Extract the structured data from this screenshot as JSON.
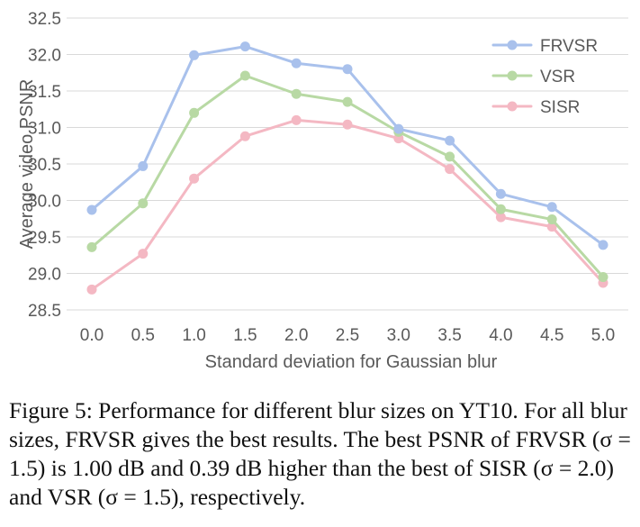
{
  "chart_data": {
    "type": "line",
    "x": [
      0.0,
      0.5,
      1.0,
      1.5,
      2.0,
      2.5,
      3.0,
      3.5,
      4.0,
      4.5,
      5.0
    ],
    "x_tick_labels": [
      "0.0",
      "0.5",
      "1.0",
      "1.5",
      "2.0",
      "2.5",
      "3.0",
      "3.5",
      "4.0",
      "4.5",
      "5.0"
    ],
    "y_tick_labels": [
      "28.5",
      "29.0",
      "29.5",
      "30.0",
      "30.5",
      "31.0",
      "31.5",
      "32.0",
      "32.5"
    ],
    "ylim": [
      28.5,
      32.5
    ],
    "xlabel": "Standard deviation for Gaussian blur",
    "ylabel": "Average video PSNR",
    "grid": "horizontal",
    "legend_position": "top-right",
    "series": [
      {
        "name": "FRVSR",
        "color": "#a9c1ec",
        "values": [
          29.87,
          30.47,
          31.99,
          32.11,
          31.88,
          31.8,
          30.98,
          30.82,
          30.09,
          29.91,
          29.39
        ]
      },
      {
        "name": "VSR",
        "color": "#b8d9a4",
        "values": [
          29.36,
          29.96,
          31.2,
          31.71,
          31.46,
          31.35,
          30.94,
          30.6,
          29.88,
          29.74,
          28.95
        ]
      },
      {
        "name": "SISR",
        "color": "#f4b8c3",
        "values": [
          28.78,
          29.27,
          30.3,
          30.88,
          31.1,
          31.04,
          30.85,
          30.43,
          29.77,
          29.64,
          28.87
        ]
      }
    ]
  },
  "caption": {
    "text": "Figure 5: Performance for different blur sizes on YT10. For all blur sizes, FRVSR gives the best results. The best PSNR of FRVSR (σ = 1.5) is 1.00 dB and 0.39 dB higher than the best of SISR (σ = 2.0) and VSR (σ = 1.5), respectively."
  }
}
